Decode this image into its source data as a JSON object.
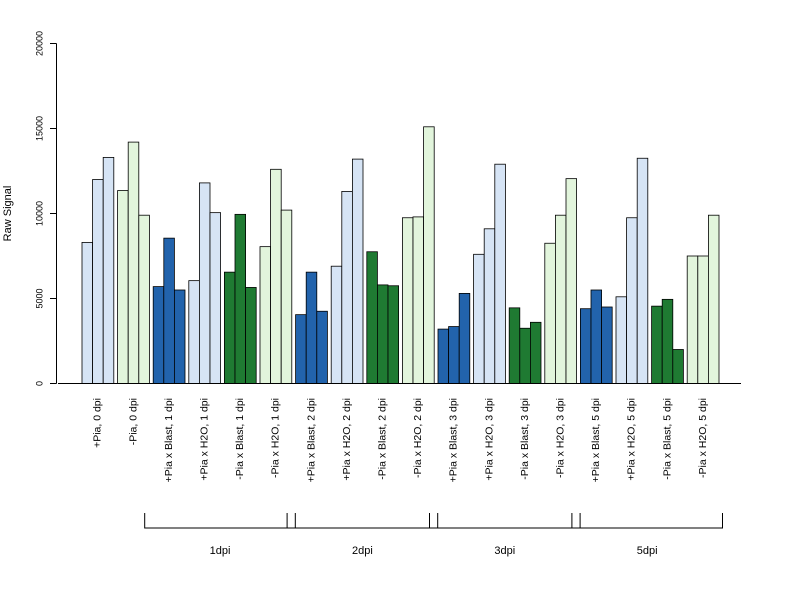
{
  "chart_data": {
    "type": "bar",
    "ylabel": "Raw Signal",
    "ylim": [
      0,
      20000
    ],
    "yticks": [
      0,
      5000,
      10000,
      15000,
      20000
    ],
    "grid": false,
    "categories": [
      "+Pia, 0 dpi",
      "-Pia, 0 dpi",
      "+Pia x Blast, 1 dpi",
      "+Pia x H2O, 1 dpi",
      "-Pia x Blast, 1 dpi",
      "-Pia x H2O, 1 dpi",
      "+Pia x Blast, 2 dpi",
      "+Pia x H2O, 2 dpi",
      "-Pia x Blast, 2 dpi",
      "-Pia x H2O, 2 dpi",
      "+Pia x Blast, 3 dpi",
      "+Pia x H2O, 3 dpi",
      "-Pia x Blast, 3 dpi",
      "-Pia x H2O, 3 dpi",
      "+Pia x Blast, 5 dpi",
      "+Pia x H2O, 5 dpi",
      "-Pia x Blast, 5 dpi",
      "-Pia x H2O, 5 dpi"
    ],
    "colors": [
      "#d6e4f5",
      "#e2f5dc",
      "#2263ac",
      "#d6e4f5",
      "#1f7a32",
      "#e2f5dc",
      "#2263ac",
      "#d6e4f5",
      "#1f7a32",
      "#e2f5dc",
      "#2263ac",
      "#d6e4f5",
      "#1f7a32",
      "#e2f5dc",
      "#2263ac",
      "#d6e4f5",
      "#1f7a32",
      "#e2f5dc"
    ],
    "values": [
      [
        8300,
        12000,
        13300
      ],
      [
        11350,
        14200,
        9900
      ],
      [
        5700,
        8550,
        5500
      ],
      [
        6050,
        11800,
        10050
      ],
      [
        6550,
        9950,
        5650
      ],
      [
        8050,
        12600,
        10200
      ],
      [
        4050,
        6550,
        4250
      ],
      [
        6900,
        11300,
        13200
      ],
      [
        7750,
        5800,
        5750
      ],
      [
        9750,
        9800,
        15100
      ],
      [
        3200,
        3350,
        5300
      ],
      [
        7600,
        9100,
        12900
      ],
      [
        4450,
        3250,
        3600
      ],
      [
        8250,
        9900,
        12050
      ],
      [
        4400,
        5500,
        4500
      ],
      [
        5100,
        9750,
        13250
      ],
      [
        4550,
        4950,
        2000
      ],
      [
        7500,
        7500,
        9900
      ]
    ],
    "groups": [
      {
        "label": "1dpi",
        "from": 2,
        "to": 5
      },
      {
        "label": "2dpi",
        "from": 6,
        "to": 9
      },
      {
        "label": "3dpi",
        "from": 10,
        "to": 13
      },
      {
        "label": "5dpi",
        "from": 14,
        "to": 17
      }
    ]
  }
}
